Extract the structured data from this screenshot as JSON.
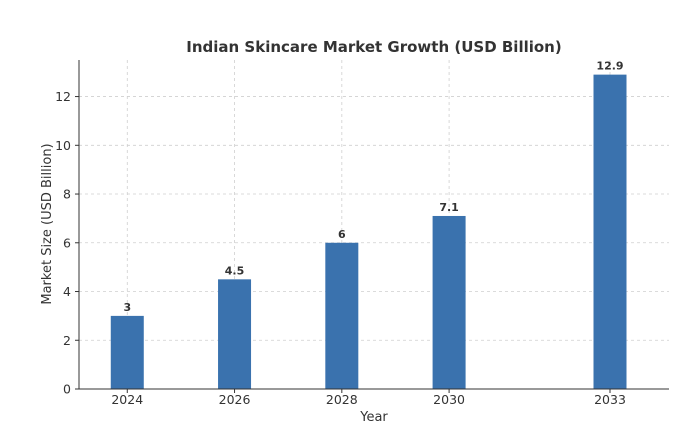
{
  "chart_data": {
    "type": "bar",
    "title": "Indian Skincare Market Growth (USD Billion)",
    "xlabel": "Year",
    "ylabel": "Market Size (USD Billion)",
    "x": [
      2024,
      2026,
      2028,
      2030,
      2033
    ],
    "x_ticks": [
      "2024",
      "2026",
      "2028",
      "2030",
      "2033"
    ],
    "values": [
      3,
      4.5,
      6,
      7.1,
      12.9
    ],
    "data_labels": [
      "3",
      "4.5",
      "6",
      "7.1",
      "12.9"
    ],
    "xlim": [
      2023.1,
      2034.1
    ],
    "ylim": [
      0,
      13.5
    ],
    "y_ticks": [
      0,
      2,
      4,
      6,
      8,
      10,
      12
    ],
    "grid": true,
    "bar_color": "#3a72ae"
  }
}
